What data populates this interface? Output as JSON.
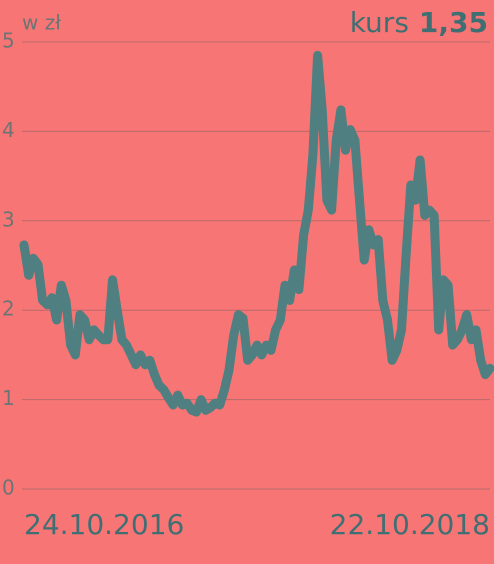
{
  "chart_data": {
    "type": "line",
    "title": "kurs",
    "current": {
      "value": 1.35,
      "label": "1,35"
    },
    "y_label": "w zł",
    "values": [
      2.73,
      2.39,
      2.58,
      2.51,
      2.11,
      2.06,
      2.14,
      1.89,
      2.28,
      2.11,
      1.61,
      1.5,
      1.95,
      1.89,
      1.67,
      1.78,
      1.72,
      1.67,
      1.67,
      2.34,
      2.0,
      1.67,
      1.61,
      1.5,
      1.39,
      1.5,
      1.39,
      1.44,
      1.28,
      1.16,
      1.11,
      1.02,
      0.94,
      1.05,
      0.94,
      0.96,
      0.88,
      0.86,
      1.0,
      0.88,
      0.91,
      0.96,
      0.94,
      1.11,
      1.33,
      1.72,
      1.95,
      1.91,
      1.44,
      1.5,
      1.61,
      1.5,
      1.61,
      1.55,
      1.78,
      1.89,
      2.28,
      2.11,
      2.45,
      2.23,
      2.84,
      3.12,
      3.74,
      4.85,
      4.24,
      3.23,
      3.12,
      3.9,
      4.24,
      3.79,
      4.02,
      3.9,
      3.23,
      2.56,
      2.9,
      2.73,
      2.79,
      2.11,
      1.89,
      1.44,
      1.55,
      1.78,
      2.62,
      3.4,
      3.23,
      3.68,
      3.06,
      3.12,
      3.06,
      1.78,
      2.34,
      2.28,
      1.61,
      1.67,
      1.78,
      1.95,
      1.67,
      1.78,
      1.44,
      1.28,
      1.35
    ],
    "color": "#4f7f80",
    "xlim": [
      0,
      100
    ],
    "xticks": [
      {
        "value": 0,
        "label": "24.10.2016"
      },
      {
        "value": 100,
        "label": "22.10.2018"
      }
    ],
    "ylim": [
      0,
      5
    ],
    "yticks": [
      0,
      1,
      2,
      3,
      4,
      5
    ],
    "grid": true
  }
}
